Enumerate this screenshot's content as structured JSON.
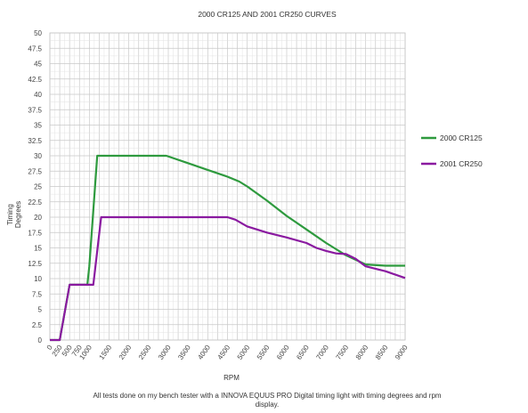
{
  "chart_data": {
    "type": "line",
    "title": "2000 CR125 AND 2001 CR250 CURVES",
    "xlabel": "RPM",
    "ylabel": "Timing Degrees",
    "ylabel_lines": [
      "Timing",
      "Degrees"
    ],
    "xlim": [
      0,
      9000
    ],
    "ylim": [
      0,
      50
    ],
    "x_ticks": [
      "0",
      "250",
      "500",
      "750",
      "1000",
      "1500",
      "2000",
      "2500",
      "3000",
      "3500",
      "4000",
      "4500",
      "5000",
      "5500",
      "6000",
      "6500",
      "7000",
      "7500",
      "8000",
      "8500",
      "9000"
    ],
    "y_ticks": [
      "0",
      "2.5",
      "5",
      "7.5",
      "10",
      "12.5",
      "15",
      "17.5",
      "20",
      "22.5",
      "25",
      "27.5",
      "30",
      "32.5",
      "35",
      "37.5",
      "40",
      "42.5",
      "45",
      "47.5",
      "50"
    ],
    "grid": true,
    "legend_position": "right",
    "footnote_lines": [
      "All tests done on my bench tester with a INNOVA EQUUS PRO Digital timing light with timing degrees and rpm",
      "display."
    ],
    "series": [
      {
        "name": "2000 CR125",
        "color": "#2e9a3e",
        "points": [
          [
            0,
            0
          ],
          [
            250,
            0
          ],
          [
            500,
            9
          ],
          [
            750,
            9
          ],
          [
            950,
            9
          ],
          [
            1000,
            12
          ],
          [
            1200,
            30
          ],
          [
            1500,
            30
          ],
          [
            2000,
            30
          ],
          [
            2500,
            30
          ],
          [
            2950,
            30
          ],
          [
            3500,
            28.8
          ],
          [
            4000,
            27.7
          ],
          [
            4500,
            26.6
          ],
          [
            4800,
            25.8
          ],
          [
            5000,
            25
          ],
          [
            5500,
            22.7
          ],
          [
            6000,
            20.2
          ],
          [
            6500,
            18
          ],
          [
            7000,
            15.8
          ],
          [
            7500,
            13.8
          ],
          [
            8000,
            12.3
          ],
          [
            8500,
            12.1
          ],
          [
            9000,
            12.1
          ]
        ]
      },
      {
        "name": "2001 CR250",
        "color": "#8a1aa0",
        "points": [
          [
            0,
            0
          ],
          [
            250,
            0
          ],
          [
            500,
            9
          ],
          [
            750,
            9
          ],
          [
            1100,
            9
          ],
          [
            1300,
            20
          ],
          [
            1500,
            20
          ],
          [
            2000,
            20
          ],
          [
            2500,
            20
          ],
          [
            3000,
            20
          ],
          [
            3500,
            20
          ],
          [
            4000,
            20
          ],
          [
            4500,
            20
          ],
          [
            4700,
            19.6
          ],
          [
            5000,
            18.5
          ],
          [
            5500,
            17.5
          ],
          [
            6000,
            16.7
          ],
          [
            6500,
            15.8
          ],
          [
            6750,
            15
          ],
          [
            7000,
            14.5
          ],
          [
            7250,
            14.1
          ],
          [
            7500,
            14
          ],
          [
            7750,
            13.2
          ],
          [
            8000,
            12
          ],
          [
            8500,
            11.2
          ],
          [
            9000,
            10.1
          ]
        ]
      }
    ]
  }
}
